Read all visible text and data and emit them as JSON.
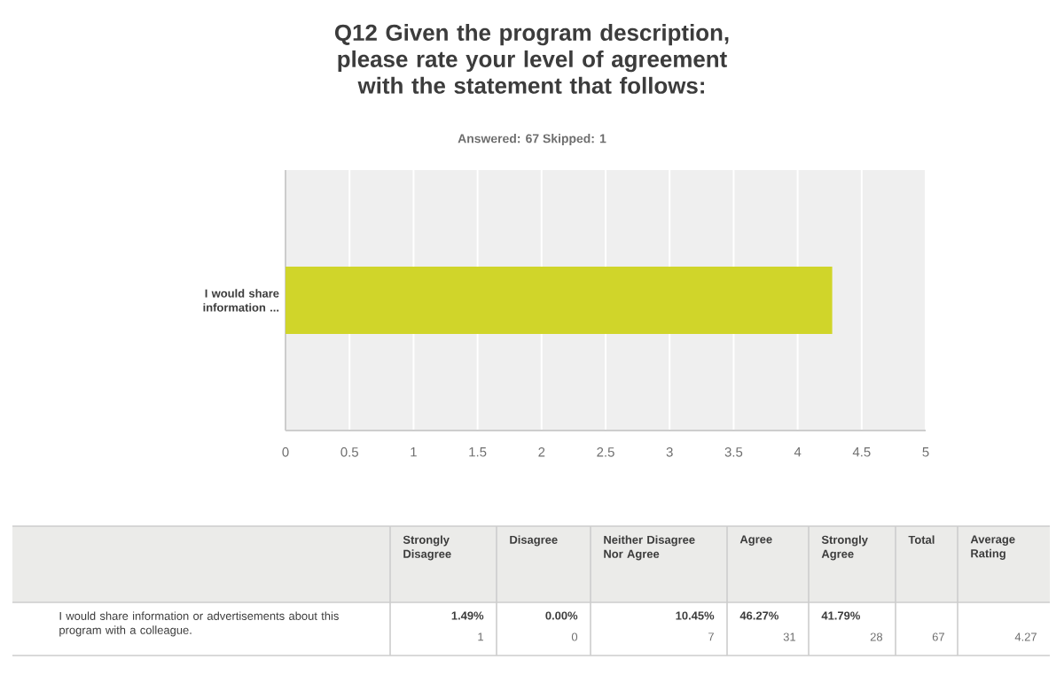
{
  "chart_data": {
    "type": "bar",
    "orientation": "horizontal",
    "title": "Q12 Given the program description, please rate your level of agreement with the statement that follows:",
    "subtitle": "Answered: 67    Skipped: 1",
    "categories": [
      "I would share information ..."
    ],
    "values": [
      4.27
    ],
    "color": "#d0d52a",
    "xlim": [
      0,
      5
    ],
    "xticks": [
      0,
      0.5,
      1,
      1.5,
      2,
      2.5,
      3,
      3.5,
      4,
      4.5,
      5
    ],
    "grid": "x",
    "annotations": [
      "Strongly Disagree",
      "Disagree",
      "Neither Disagree Nor Agree",
      "Agree",
      "Strongly Agree",
      "Total",
      "Average Rating",
      "I would share information or advertisements about this program with a colleague.",
      "1.49%",
      "1",
      "0.00%",
      "0",
      "10.45%",
      "7",
      "46.27%",
      "31",
      "41.79%",
      "28",
      "67",
      "4.27"
    ]
  }
}
